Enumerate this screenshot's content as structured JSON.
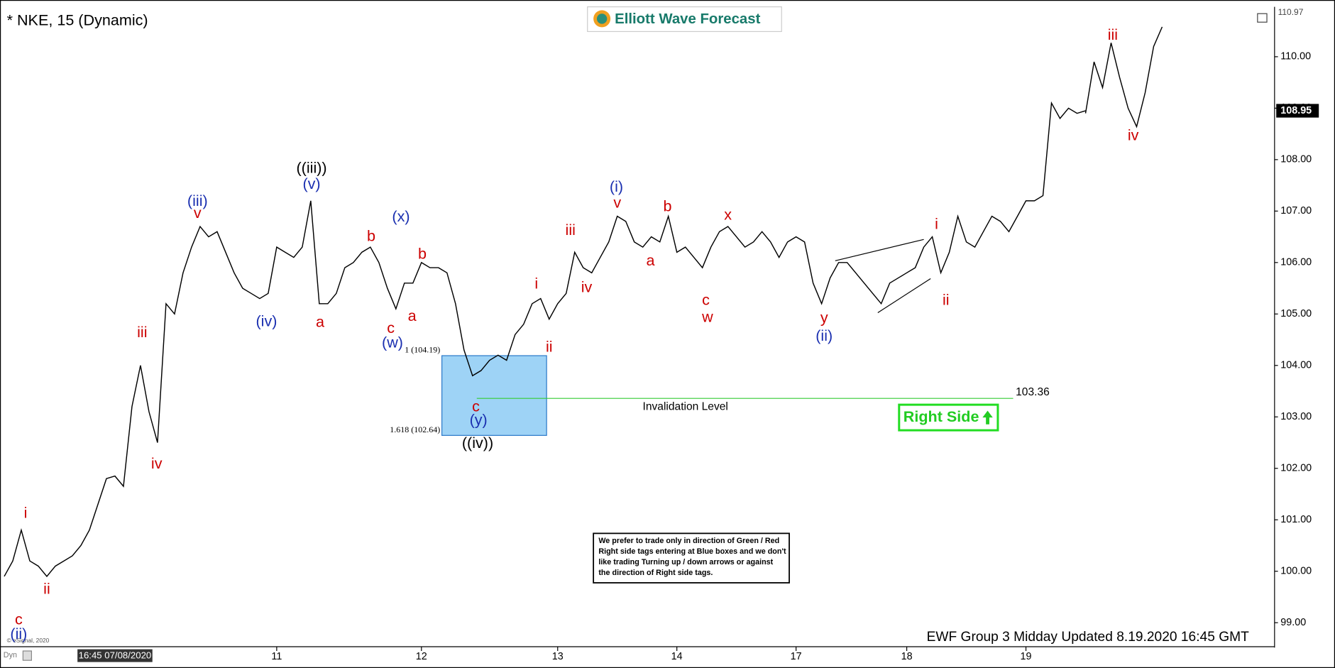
{
  "chart_data": {
    "type": "line",
    "title": "* NKE, 15 (Dynamic)",
    "brand": "Elliott Wave Forecast",
    "footer": "EWF Group 3 Midday Updated 8.19.2020 16:45 GMT",
    "copyright": "© eSignal, 2020",
    "corner_label": "Dyn",
    "categories": [
      null,
      null,
      null,
      null,
      null,
      null,
      null,
      null,
      null,
      null,
      null,
      null,
      null,
      "16:45 07/08/2020",
      null,
      null,
      null,
      null,
      null,
      null,
      null,
      null,
      null,
      null,
      null,
      null,
      null,
      null,
      null,
      null,
      null,
      null,
      "11",
      null,
      null,
      null,
      null,
      null,
      null,
      null,
      null,
      null,
      null,
      null,
      null,
      null,
      null,
      null,
      null,
      "12",
      null,
      null,
      null,
      null,
      null,
      null,
      null,
      null,
      null,
      null,
      null,
      null,
      null,
      null,
      null,
      "13",
      null,
      null,
      null,
      null,
      null,
      null,
      null,
      null,
      null,
      null,
      null,
      null,
      null,
      "14",
      null,
      null,
      null,
      null,
      null,
      null,
      null,
      null,
      null,
      null,
      null,
      null,
      null,
      "17",
      null,
      null,
      null,
      null,
      null,
      null,
      null,
      null,
      null,
      null,
      null,
      null,
      "18",
      null,
      null,
      null,
      null,
      null,
      null,
      null,
      null,
      null,
      null,
      null,
      null,
      null,
      "19",
      null,
      null,
      null,
      null,
      null,
      null,
      null,
      null,
      null,
      null,
      null,
      null,
      null,
      null,
      null,
      null
    ],
    "values": [
      99.9,
      100.2,
      100.8,
      100.2,
      100.1,
      99.9,
      100.1,
      100.2,
      100.3,
      100.5,
      100.8,
      101.3,
      101.8,
      101.85,
      101.65,
      103.2,
      104.0,
      103.1,
      102.5,
      105.2,
      105.0,
      105.8,
      106.3,
      106.7,
      106.5,
      106.6,
      106.2,
      105.8,
      105.5,
      105.4,
      105.3,
      105.4,
      106.3,
      106.2,
      106.1,
      106.3,
      107.2,
      105.2,
      105.2,
      105.4,
      105.9,
      106.0,
      106.2,
      106.3,
      106.0,
      105.5,
      105.1,
      105.6,
      105.6,
      106.0,
      105.9,
      105.9,
      105.8,
      105.2,
      104.3,
      103.8,
      103.9,
      104.1,
      104.2,
      104.1,
      104.6,
      104.8,
      105.2,
      105.3,
      104.9,
      105.2,
      105.4,
      106.2,
      105.9,
      105.8,
      106.1,
      106.4,
      106.9,
      106.8,
      106.4,
      106.3,
      106.5,
      106.4,
      106.9,
      106.2,
      106.3,
      106.1,
      105.9,
      106.3,
      106.6,
      106.7,
      106.5,
      106.3,
      106.4,
      106.6,
      106.4,
      106.1,
      106.4,
      106.5,
      106.4,
      105.6,
      105.2,
      105.7,
      106.0,
      106.0,
      105.8,
      105.6,
      105.4,
      105.2,
      105.6,
      105.7,
      105.8,
      105.9,
      106.3,
      106.5,
      105.8,
      106.2,
      106.9,
      106.4,
      106.3,
      106.6,
      106.9,
      106.8,
      106.6,
      106.9,
      107.2,
      107.2,
      107.3,
      109.1,
      108.8,
      109.0,
      108.9,
      108.95,
      null,
      null,
      null,
      null,
      null,
      null,
      null,
      null,
      null
    ],
    "projection": [
      null,
      null,
      null,
      null,
      null,
      null,
      null,
      null,
      null,
      null,
      null,
      null,
      null,
      null,
      null,
      null,
      null,
      null,
      null,
      null,
      null,
      null,
      null,
      null,
      null,
      null,
      null,
      null,
      null,
      null,
      null,
      null,
      null,
      null,
      null,
      null,
      null,
      null,
      null,
      null,
      null,
      null,
      null,
      null,
      null,
      null,
      null,
      null,
      null,
      null,
      null,
      null,
      null,
      null,
      null,
      null,
      null,
      null,
      null,
      null,
      null,
      null,
      null,
      null,
      null,
      null,
      null,
      null,
      null,
      null,
      null,
      null,
      null,
      null,
      null,
      null,
      null,
      null,
      null,
      null,
      null,
      null,
      null,
      null,
      null,
      null,
      null,
      null,
      null,
      null,
      null,
      null,
      null,
      null,
      null,
      null,
      null,
      null,
      null,
      null,
      null,
      null,
      null,
      null,
      null,
      null,
      null,
      null,
      null,
      null,
      null,
      null,
      null,
      null,
      null,
      null,
      null,
      null,
      null,
      null,
      null,
      null,
      null,
      null,
      null,
      null,
      null,
      108.9,
      109.9,
      109.4,
      110.27,
      109.6,
      109.0,
      108.64,
      109.3,
      110.2,
      110.58
    ],
    "color": "#000000",
    "ylim": [
      98.55,
      110.97
    ],
    "yticks": [
      {
        "value": 99,
        "label": "99.00"
      },
      {
        "value": 100,
        "label": "100.00"
      },
      {
        "value": 101,
        "label": "101.00"
      },
      {
        "value": 102,
        "label": "102.00"
      },
      {
        "value": 103,
        "label": "103.00"
      },
      {
        "value": 104,
        "label": "104.00"
      },
      {
        "value": 105,
        "label": "105.00"
      },
      {
        "value": 106,
        "label": "106.00"
      },
      {
        "value": 107,
        "label": "107.00"
      },
      {
        "value": 108,
        "label": "108.00"
      },
      {
        "value": 109,
        "label": "109.00"
      },
      {
        "value": 110,
        "label": "110.00"
      }
    ],
    "last_price": 108.95,
    "box": [
      {
        "value": 104.19,
        "label": "1 (104.19)"
      },
      {
        "value": 102.64,
        "label": "1.618 (102.64)"
      }
    ],
    "invalidation": {
      "value": 103.36,
      "text": "Invalidation Level"
    },
    "right_side": "Right Side",
    "note": [
      "We prefer to trade only in direction of Green / Red",
      "Right side tags entering at Blue boxes and we don't",
      "like trading Turning up / down arrows or against",
      "the direction of Right side tags."
    ],
    "wave_labels": [
      {
        "text": "c",
        "color": "#cc0000"
      },
      {
        "text": "(ii)",
        "color": "#1a2fb0"
      },
      {
        "text": "i",
        "color": "#cc0000"
      },
      {
        "text": "ii",
        "color": "#cc0000"
      },
      {
        "text": "iii",
        "color": "#cc0000"
      },
      {
        "text": "iv",
        "color": "#cc0000"
      },
      {
        "text": "(iii)",
        "color": "#1a2fb0"
      },
      {
        "text": "v",
        "color": "#cc0000"
      },
      {
        "text": "(iv)",
        "color": "#1a2fb0"
      },
      {
        "text": "((iii))",
        "color": "#000000"
      },
      {
        "text": "(v)",
        "color": "#1a2fb0"
      },
      {
        "text": "a",
        "color": "#cc0000"
      },
      {
        "text": "b",
        "color": "#cc0000"
      },
      {
        "text": "c",
        "color": "#cc0000"
      },
      {
        "text": "(w)",
        "color": "#1a2fb0"
      },
      {
        "text": "(x)",
        "color": "#1a2fb0"
      },
      {
        "text": "a",
        "color": "#cc0000"
      },
      {
        "text": "b",
        "color": "#cc0000"
      },
      {
        "text": "c",
        "color": "#cc0000"
      },
      {
        "text": "(y)",
        "color": "#1a2fb0"
      },
      {
        "text": "((iv))",
        "color": "#000000"
      },
      {
        "text": "i",
        "color": "#cc0000"
      },
      {
        "text": "ii",
        "color": "#cc0000"
      },
      {
        "text": "iii",
        "color": "#cc0000"
      },
      {
        "text": "iv",
        "color": "#cc0000"
      },
      {
        "text": "(i)",
        "color": "#1a2fb0"
      },
      {
        "text": "v",
        "color": "#cc0000"
      },
      {
        "text": "a",
        "color": "#cc0000"
      },
      {
        "text": "b",
        "color": "#cc0000"
      },
      {
        "text": "c",
        "color": "#cc0000"
      },
      {
        "text": "w",
        "color": "#cc0000"
      },
      {
        "text": "x",
        "color": "#cc0000"
      },
      {
        "text": "y",
        "color": "#cc0000"
      },
      {
        "text": "(ii)",
        "color": "#1a2fb0"
      },
      {
        "text": "i",
        "color": "#cc0000"
      },
      {
        "text": "ii",
        "color": "#cc0000"
      },
      {
        "text": "iii",
        "color": "#cc0000"
      },
      {
        "text": "iv",
        "color": "#cc0000"
      }
    ]
  }
}
